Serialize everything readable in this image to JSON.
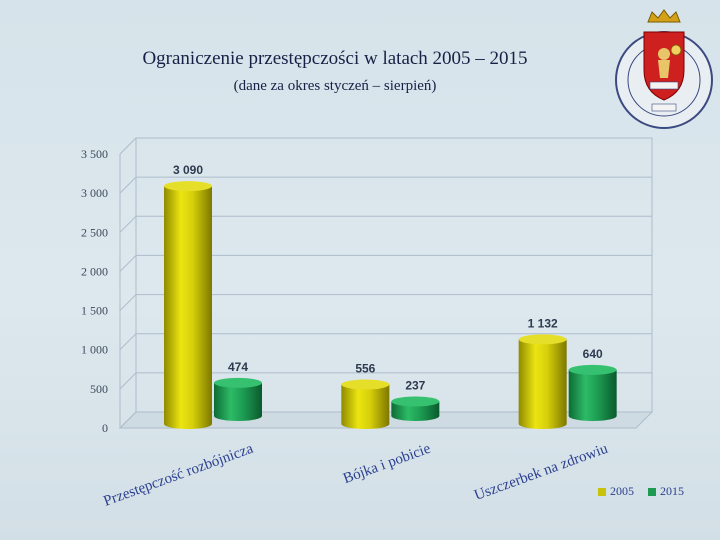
{
  "title": "Ograniczenie przestępczości w latach 2005 – 2015",
  "subtitle": "(dane za okres styczeń – sierpień)",
  "emblem": {
    "ring_text": "KOMENDA STOŁECZNA POLICJI",
    "banner_top": "POLICJA",
    "banner_bottom": "WARSZAWA"
  },
  "colors": {
    "2005": "#c9c20a",
    "2015": "#1e9a52"
  },
  "chart_data": {
    "type": "bar",
    "categories": [
      "Przestępczość rozbójnicza",
      "Bójka i pobicie",
      "Uszczerbek na zdrowiu"
    ],
    "series": [
      {
        "name": "2005",
        "values": [
          3090,
          556,
          1132
        ],
        "labels": [
          "3 090",
          "556",
          "1 132"
        ]
      },
      {
        "name": "2015",
        "values": [
          474,
          237,
          640
        ],
        "labels": [
          "474",
          "237",
          "640"
        ]
      }
    ],
    "ylim": [
      0,
      3500
    ],
    "yticks": [
      0,
      500,
      1000,
      1500,
      2000,
      2500,
      3000,
      3500
    ],
    "ytick_labels": [
      "0",
      "500",
      "1 000",
      "1 500",
      "2 000",
      "2 500",
      "3 000",
      "3 500"
    ],
    "grid": true,
    "legend_position": "bottom-right",
    "xlabel": "",
    "ylabel": ""
  }
}
